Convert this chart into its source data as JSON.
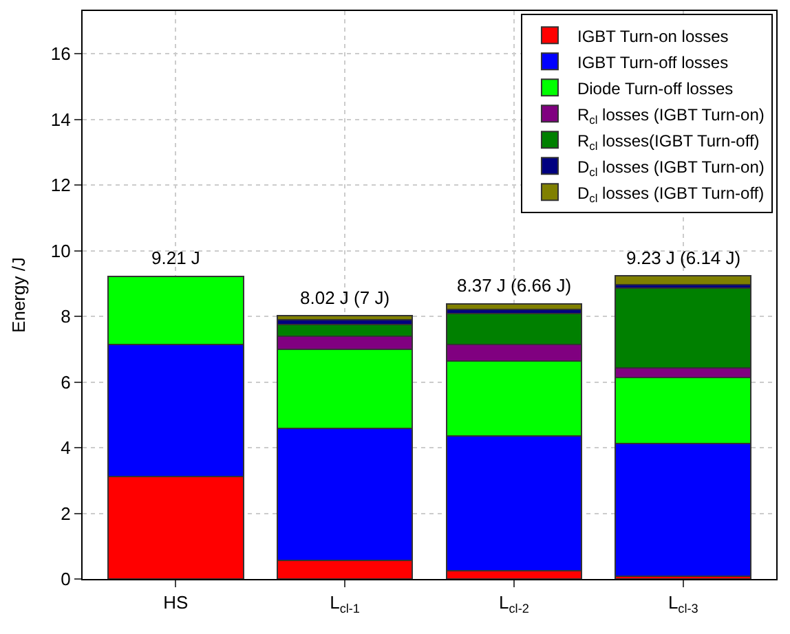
{
  "chart_data": {
    "type": "bar",
    "stacked": true,
    "ylabel": "Energy /J",
    "categories": [
      "HS",
      "L$_{cl-1}$",
      "L$_{cl-2}$",
      "L$_{cl-3}$"
    ],
    "series": [
      {
        "name": "IGBT Turn-on losses",
        "color": "#ff0000",
        "values": [
          3.13,
          0.57,
          0.25,
          0.09
        ]
      },
      {
        "name": "IGBT Turn-off losses",
        "color": "#0000ff",
        "values": [
          4.02,
          4.02,
          4.11,
          4.03
        ]
      },
      {
        "name": "Diode Turn-off losses",
        "color": "#00ff00",
        "values": [
          2.06,
          2.4,
          2.29,
          2.01
        ]
      },
      {
        "name": "R$_{cl}$ losses (IGBT Turn-on)",
        "color": "#800080",
        "values": [
          null,
          0.4,
          0.5,
          0.3
        ]
      },
      {
        "name": "R$_{cl}$ losses(IGBT Turn-off)",
        "color": "#008000",
        "values": [
          null,
          0.37,
          0.94,
          2.44
        ]
      },
      {
        "name": "D$_{cl}$ losses (IGBT Turn-on)",
        "color": "#000080",
        "values": [
          null,
          0.13,
          0.12,
          0.09
        ]
      },
      {
        "name": "D$_{cl}$ losses (IGBT Turn-off)",
        "color": "#808000",
        "values": [
          null,
          0.13,
          0.16,
          0.27
        ]
      }
    ],
    "totals": [
      "9.21 J",
      "8.02 J (7 J)",
      "8.37 J (6.66 J)",
      "9.23 J (6.14 J)"
    ],
    "ylim": [
      0,
      17.3
    ],
    "yticks": [
      0,
      2,
      4,
      6,
      8,
      10,
      12,
      14,
      16
    ],
    "grid": true,
    "legend": "top right"
  }
}
